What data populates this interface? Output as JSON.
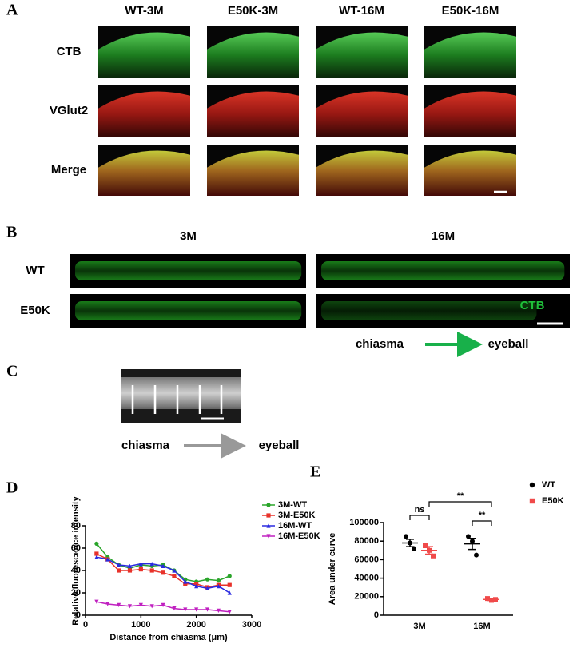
{
  "panel_labels": [
    "A",
    "B",
    "C",
    "D",
    "E"
  ],
  "panel_a": {
    "columns": [
      "WT-3M",
      "E50K-3M",
      "WT-16M",
      "E50K-16M"
    ],
    "rows": [
      "CTB",
      "VGlut2",
      "Merge"
    ]
  },
  "panel_b": {
    "columns": [
      "3M",
      "16M"
    ],
    "rows": [
      "WT",
      "E50K"
    ],
    "stain": "CTB",
    "from": "chiasma",
    "to": "eyeball"
  },
  "panel_c": {
    "from": "chiasma",
    "to": "eyeball"
  },
  "chart_data": [
    {
      "type": "line",
      "xlabel": "Distance from chiasma (μm)",
      "ylabel": "Relative fluorescence intensity",
      "x": [
        200,
        400,
        600,
        800,
        1000,
        1200,
        1400,
        1600,
        1800,
        2000,
        2200,
        2400,
        2600
      ],
      "xlim": [
        0,
        3000
      ],
      "xticks": [
        0,
        1000,
        2000,
        3000
      ],
      "ylim": [
        0,
        80
      ],
      "yticks": [
        0,
        20,
        40,
        60,
        80
      ],
      "series": [
        {
          "name": "3M-WT",
          "color": "#2aa52a",
          "marker": "circle",
          "values": [
            64,
            52,
            45,
            42,
            45,
            44,
            45,
            40,
            32,
            30,
            32,
            31,
            35
          ]
        },
        {
          "name": "3M-E50K",
          "color": "#e8322a",
          "marker": "square",
          "values": [
            55,
            50,
            40,
            40,
            41,
            40,
            38,
            35,
            28,
            28,
            25,
            27,
            27
          ]
        },
        {
          "name": "16M-WT",
          "color": "#2a2ae0",
          "marker": "triangle",
          "values": [
            52,
            50,
            45,
            44,
            46,
            46,
            44,
            40,
            30,
            26,
            24,
            26,
            20
          ]
        },
        {
          "name": "16M-E50K",
          "color": "#c020c0",
          "marker": "triangle-down",
          "values": [
            12,
            10,
            9,
            8,
            9,
            8,
            9,
            6,
            5,
            5,
            5,
            4,
            3
          ]
        }
      ]
    },
    {
      "type": "scatter",
      "ylabel": "Area under curve",
      "categories": [
        "3M",
        "16M"
      ],
      "ylim": [
        0,
        100000
      ],
      "yticks": [
        0,
        20000,
        40000,
        60000,
        80000,
        100000
      ],
      "series": [
        {
          "name": "WT",
          "color": "#000000",
          "marker": "circle",
          "values": [
            [
              85000,
              78000,
              72000
            ],
            [
              85000,
              80000,
              65000
            ]
          ],
          "means": [
            78000,
            77000
          ],
          "sem": [
            4000,
            6000
          ]
        },
        {
          "name": "E50K",
          "color": "#f04a4a",
          "marker": "square",
          "values": [
            [
              75000,
              70000,
              64000
            ],
            [
              18000,
              16000,
              17000
            ]
          ],
          "means": [
            70000,
            17000
          ],
          "sem": [
            4000,
            1000
          ]
        }
      ],
      "annotations": [
        "ns",
        "**",
        "**"
      ]
    }
  ]
}
